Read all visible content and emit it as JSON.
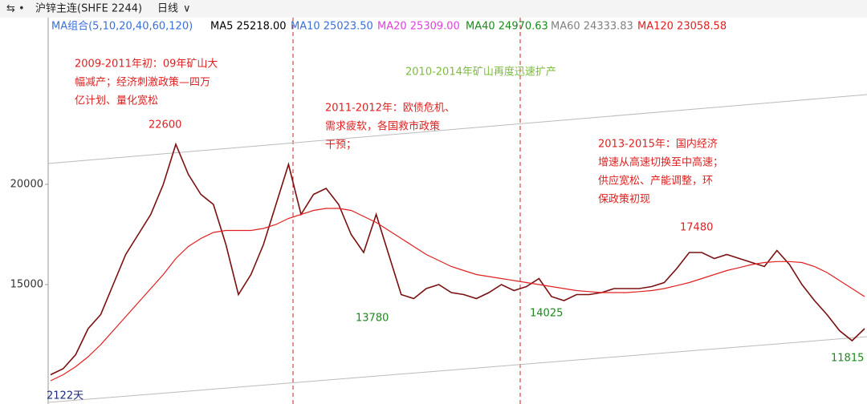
{
  "header": {
    "symbol": "沪锌主连(SHFE 2244)",
    "period": "日线"
  },
  "ma_legend": {
    "group": "MA组合(5,10,20,40,60,120)",
    "items": [
      {
        "text": "MA5 25218.00",
        "color": "#000000"
      },
      {
        "text": "MA10 25023.50",
        "color": "#3a6fd8"
      },
      {
        "text": "MA20 25309.00",
        "color": "#e040e0"
      },
      {
        "text": "MA40 24970.63",
        "color": "#1a8a1a"
      },
      {
        "text": "MA60 24333.83",
        "color": "#808080"
      },
      {
        "text": "MA120 23058.58",
        "color": "#e02020"
      }
    ]
  },
  "chart_data": {
    "type": "line",
    "categories": [
      null,
      null,
      null,
      null,
      null,
      null,
      null,
      null,
      null,
      null,
      null,
      null,
      null,
      null,
      null,
      null,
      null,
      null,
      null,
      null,
      null,
      null,
      null,
      null,
      null,
      null,
      null,
      null,
      null,
      null,
      null,
      null,
      null,
      null,
      null,
      null,
      null,
      null,
      null,
      null,
      null,
      null,
      null,
      null,
      null,
      null,
      null,
      null,
      null,
      null,
      null,
      null,
      null,
      null,
      null,
      null,
      null,
      null,
      null,
      null,
      null,
      null,
      null,
      null,
      null,
      null
    ],
    "series": [
      {
        "name": null,
        "color": "#7a1010",
        "values": [
          10500,
          10800,
          11500,
          12800,
          13500,
          15000,
          16500,
          17500,
          18500,
          20000,
          22000,
          20500,
          19500,
          19000,
          17000,
          14500,
          15500,
          17000,
          19000,
          21000,
          18500,
          19500,
          19800,
          19000,
          17500,
          16600,
          18500,
          16500,
          14500,
          14300,
          14800,
          15000,
          14600,
          14500,
          14300,
          14600,
          15000,
          14700,
          14900,
          15300,
          14400,
          14200,
          14500,
          14500,
          14600,
          14800,
          14800,
          14800,
          14900,
          15100,
          15800,
          16600,
          16600,
          16300,
          16500,
          16300,
          16100,
          15900,
          16700,
          16000,
          15000,
          14200,
          13500,
          12700,
          12200,
          12800
        ]
      },
      {
        "name": null,
        "color": "#e02020",
        "values": [
          10200,
          10500,
          10900,
          11400,
          12000,
          12700,
          13400,
          14100,
          14800,
          15500,
          16300,
          16900,
          17300,
          17600,
          17700,
          17700,
          17700,
          17800,
          18000,
          18300,
          18500,
          18700,
          18800,
          18800,
          18700,
          18400,
          18100,
          17700,
          17300,
          16900,
          16500,
          16200,
          15900,
          15700,
          15500,
          15400,
          15300,
          15200,
          15100,
          15000,
          14900,
          14800,
          14700,
          14650,
          14600,
          14600,
          14600,
          14650,
          14700,
          14800,
          14950,
          15100,
          15300,
          15500,
          15700,
          15850,
          16000,
          16100,
          16150,
          16150,
          16100,
          15900,
          15600,
          15200,
          14800,
          14400
        ]
      }
    ],
    "ylim": [
      9040,
      27600
    ],
    "yticks": [
      15000,
      20000
    ],
    "grid": false,
    "annotations": [
      {
        "text": "2009-2011年初：09年矿山大",
        "color": "#e02020"
      },
      {
        "text": "幅减产；经济刺激政策—四万",
        "color": "#e02020"
      },
      {
        "text": "亿计划、量化宽松",
        "color": "#e02020"
      },
      {
        "text": "2010-2014年矿山再度迅速扩产",
        "color": "#7cbb3c"
      },
      {
        "text": "2011-2012年：欧债危机、",
        "color": "#e02020"
      },
      {
        "text": "需求疲软，各国救市政策",
        "color": "#e02020"
      },
      {
        "text": "干预；",
        "color": "#e02020"
      },
      {
        "text": "2013-2015年：国内经济",
        "color": "#e02020"
      },
      {
        "text": "增速从高速切换至中高速；",
        "color": "#e02020"
      },
      {
        "text": "供应宽松、产能调整，环",
        "color": "#e02020"
      },
      {
        "text": "保政策初现",
        "color": "#e02020"
      },
      {
        "text": "22600",
        "color": "#e02020"
      },
      {
        "text": "13780",
        "color": "#1a8a1a"
      },
      {
        "text": "14025",
        "color": "#1a8a1a"
      },
      {
        "text": "17480",
        "color": "#e02020"
      },
      {
        "text": "11815",
        "color": "#1a8a1a"
      },
      {
        "text": "2122天",
        "color": "#1a2a80"
      }
    ]
  }
}
